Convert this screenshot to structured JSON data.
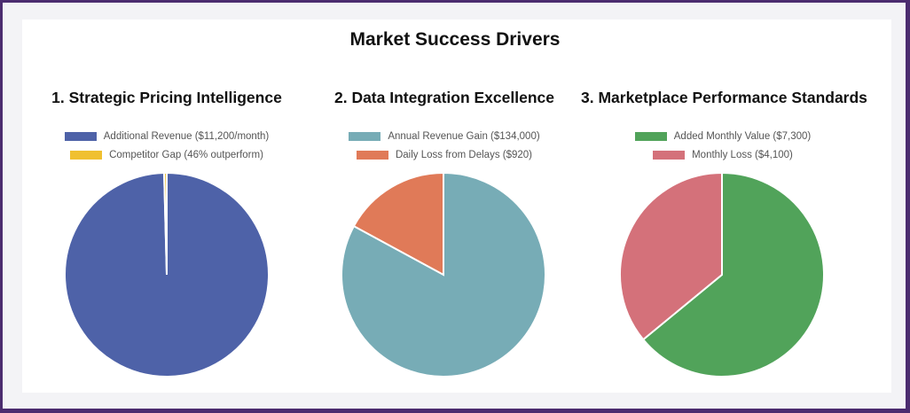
{
  "title": "Market Success Drivers",
  "chart_data": [
    {
      "type": "pie",
      "title": "1. Strategic Pricing Intelligence",
      "legend_placement": "top",
      "labels": [
        "Additional Revenue ($11,200/month)",
        "Competitor Gap (46% outperform)"
      ],
      "values": [
        11200,
        46
      ],
      "colors": [
        "#4e62a8",
        "#f0c030"
      ]
    },
    {
      "type": "pie",
      "title": "2. Data Integration Excellence",
      "legend_placement": "top",
      "labels": [
        "Annual Revenue Gain ($134,000)",
        "Daily Loss from Delays ($920)"
      ],
      "values": [
        134000,
        27600
      ],
      "colors": [
        "#77acb6",
        "#e07a58"
      ]
    },
    {
      "type": "pie",
      "title": "3. Marketplace Performance Standards",
      "legend_placement": "top",
      "labels": [
        "Added Monthly Value ($7,300)",
        "Monthly Loss ($4,100)"
      ],
      "values": [
        7300,
        4100
      ],
      "colors": [
        "#51a35a",
        "#d4717a"
      ]
    }
  ]
}
